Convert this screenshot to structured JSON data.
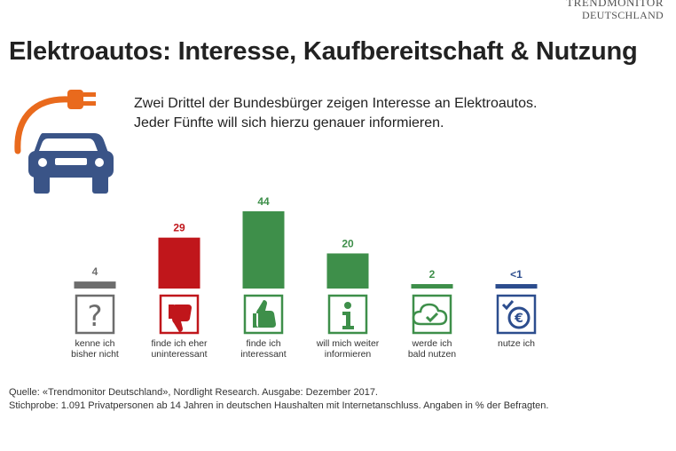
{
  "brand": {
    "line1": "TRENDMONITOR",
    "line2": "DEUTSCHLAND"
  },
  "title": "Elektroautos: Interesse, Kaufbereitschaft & Nutzung",
  "subtitle": {
    "line1": "Zwei Drittel der Bundesbürger zeigen Interesse an Elektroautos.",
    "line2": "Jeder Fünfte will sich hierzu genauer informieren."
  },
  "chart_data": {
    "type": "bar",
    "categories": [
      [
        "kenne ich",
        "bisher nicht"
      ],
      [
        "finde ich eher",
        "uninteressant"
      ],
      [
        "finde ich",
        "interessant"
      ],
      [
        "will mich weiter",
        "informieren"
      ],
      [
        "werde ich",
        "bald nutzen"
      ],
      [
        "nutze ich"
      ]
    ],
    "values": [
      4,
      29,
      44,
      20,
      2,
      0.5
    ],
    "value_labels": [
      "4",
      "29",
      "44",
      "20",
      "2",
      "<1"
    ],
    "colors": [
      "#6d6d6d",
      "#c0161b",
      "#3e8f4a",
      "#3e8f4a",
      "#3e8f4a",
      "#2c4d8e"
    ],
    "icons": [
      "question-icon",
      "thumbs-down-icon",
      "thumbs-up-icon",
      "info-icon",
      "cloud-check-icon",
      "euro-check-icon"
    ],
    "ylim": [
      0,
      44
    ],
    "grid": false,
    "legend": "none"
  },
  "footer": {
    "line1": "Quelle: «Trendmonitor Deutschland»,  Nordlight Research. Ausgabe: Dezember 2017.",
    "line2": "Stichprobe: 1.091 Privatpersonen ab 14 Jahren in deutschen Haushalten mit Internetanschluss. Angaben in % der Befragten."
  }
}
